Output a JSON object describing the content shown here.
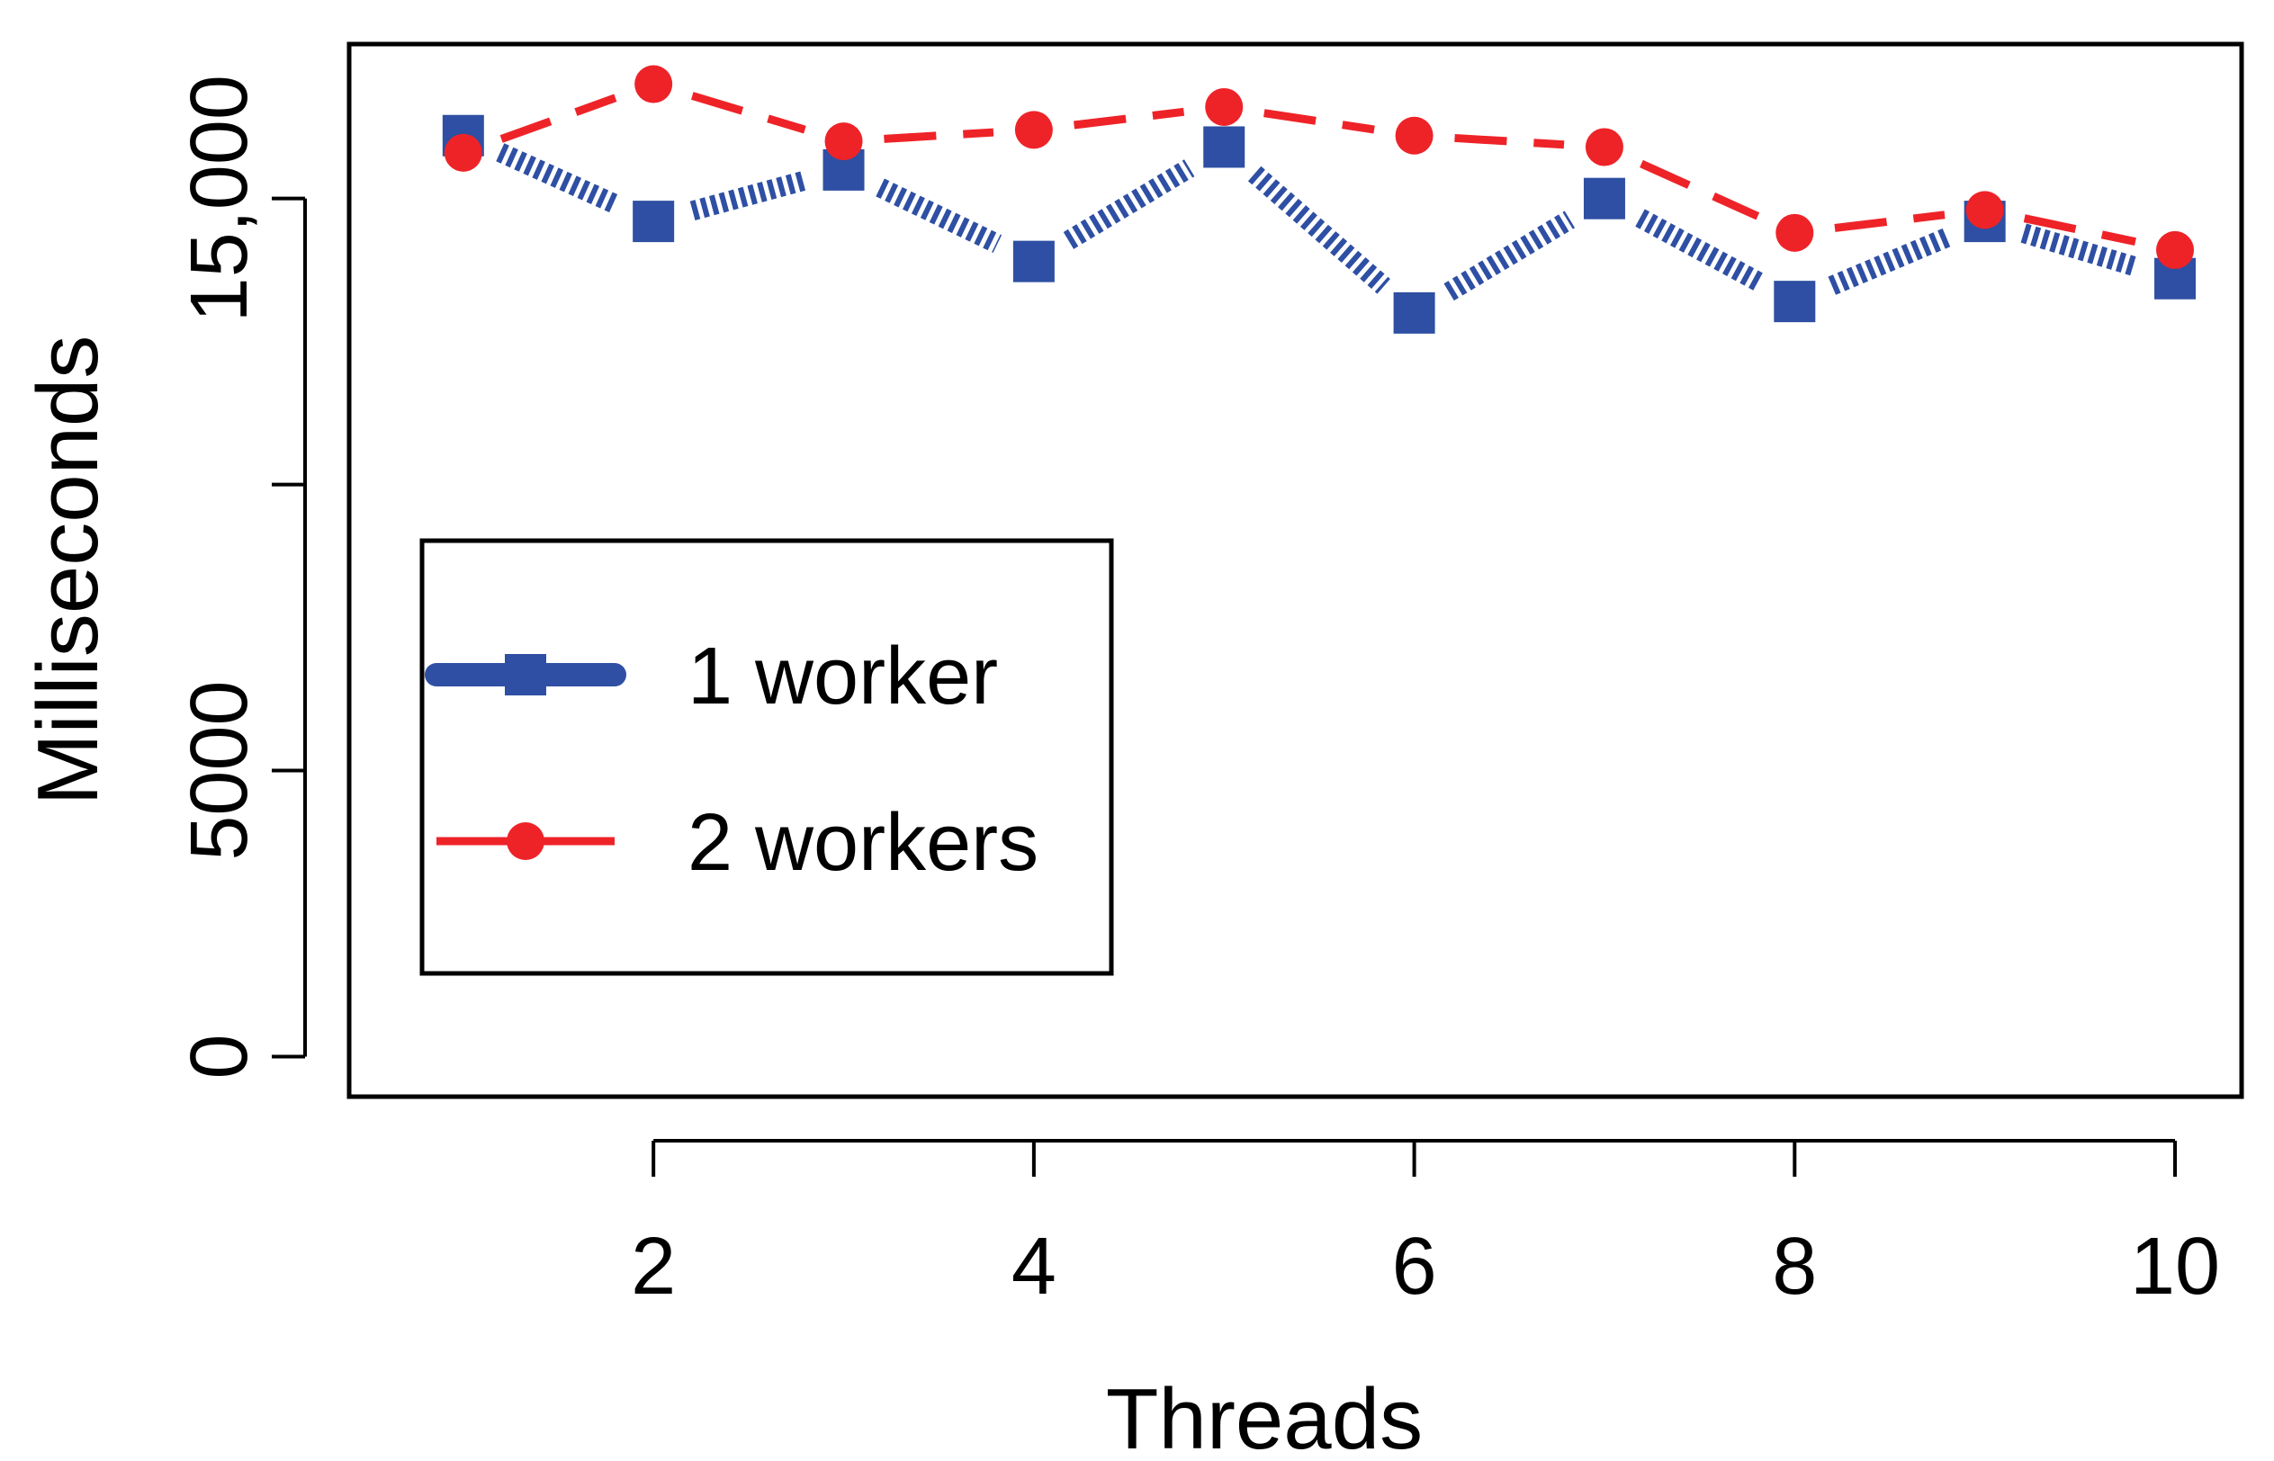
{
  "chart_data": {
    "type": "line",
    "xlabel": "Threads",
    "ylabel": "Milliseconds",
    "x": [
      1,
      2,
      3,
      4,
      5,
      6,
      7,
      8,
      9,
      10
    ],
    "xlim": [
      0.4,
      10.35
    ],
    "ylim": [
      -700,
      17700
    ],
    "x_ticks": [
      2,
      4,
      6,
      8,
      10
    ],
    "x_tick_labels": [
      "2",
      "4",
      "6",
      "8",
      "10"
    ],
    "y_ticks": [
      0,
      5000,
      10000,
      15000
    ],
    "y_tick_labels": [
      "0",
      "5000",
      "",
      "15,000"
    ],
    "grid": false,
    "legend_position": "center-left",
    "series": [
      {
        "name": "1 worker",
        "values": [
          16100,
          14600,
          15500,
          13900,
          15900,
          13000,
          15000,
          13200,
          14600,
          13600
        ],
        "color": "#2e4fa3",
        "line_style": "dotted-thick",
        "marker": "square"
      },
      {
        "name": "2 workers",
        "values": [
          15800,
          17000,
          16000,
          16200,
          16600,
          16100,
          15900,
          14400,
          14800,
          14100
        ],
        "color": "#ee2328",
        "line_style": "dashed",
        "marker": "circle"
      }
    ]
  }
}
